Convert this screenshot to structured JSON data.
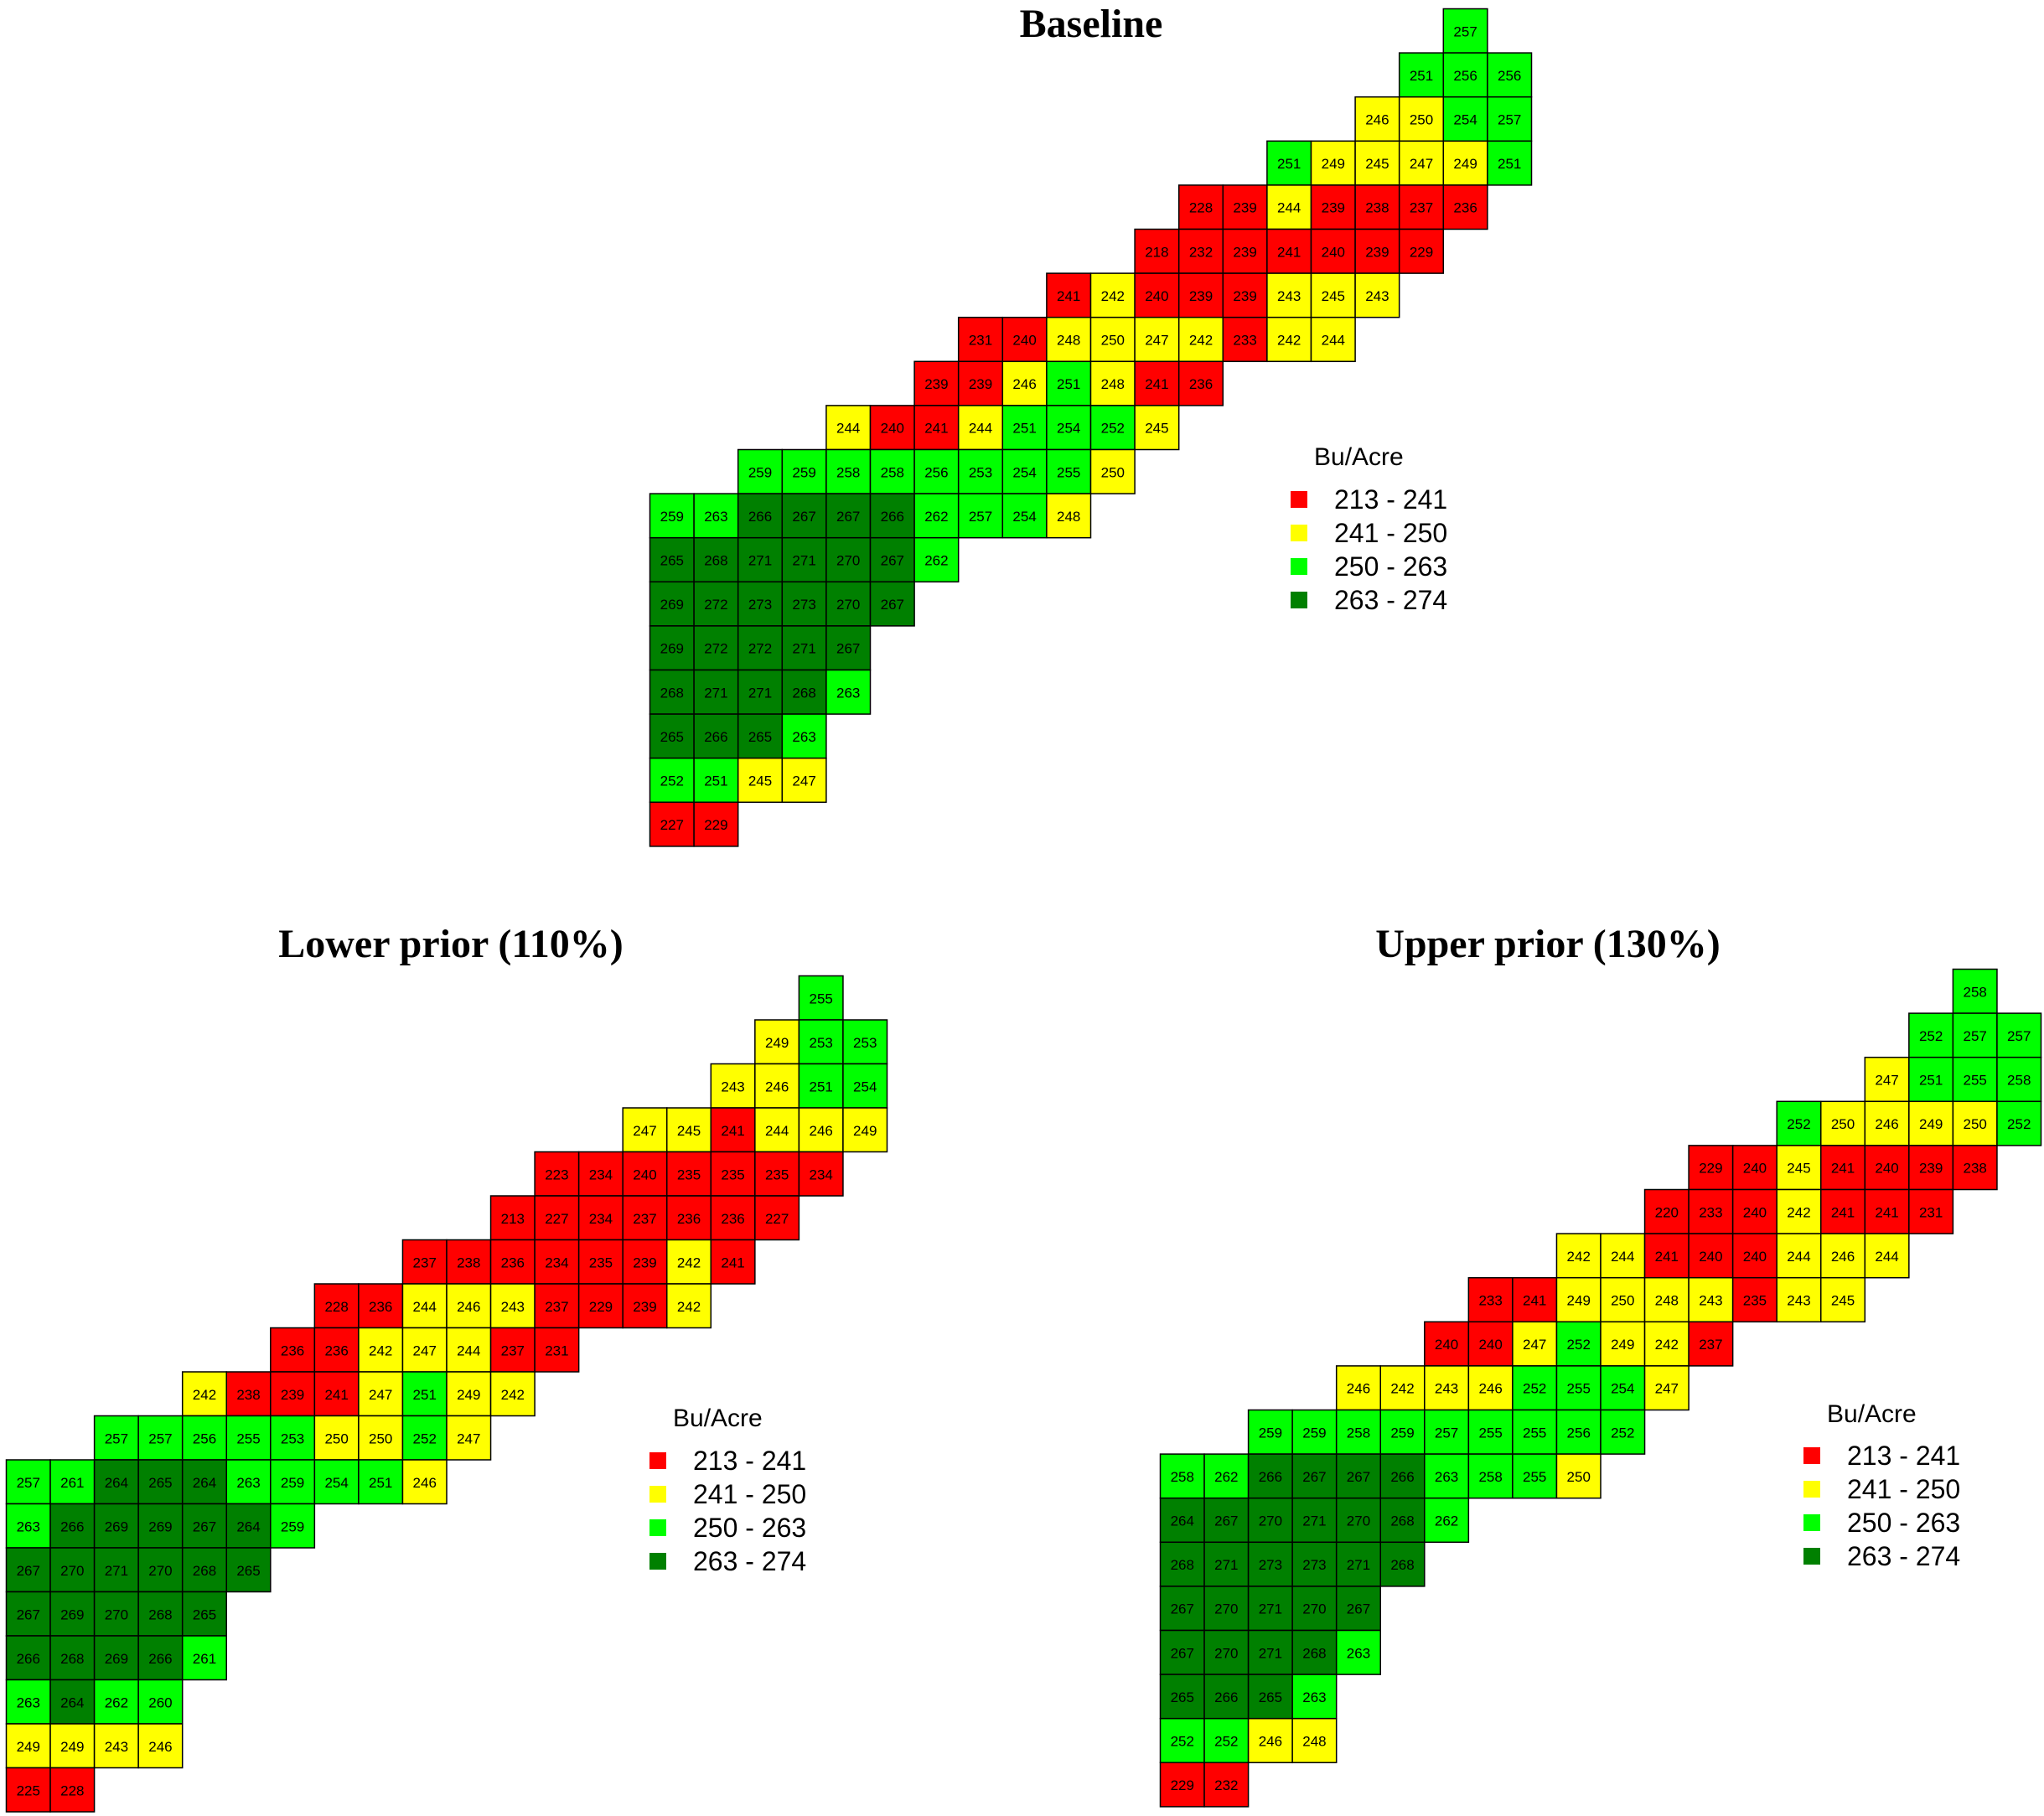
{
  "chart_data": {
    "type": "heatmap",
    "legend": {
      "title": "Bu/Acre",
      "classes": [
        {
          "label": "213 - 241",
          "color": "#ff0000"
        },
        {
          "label": "241 - 250",
          "color": "#ffff00"
        },
        {
          "label": "250 - 263",
          "color": "#00ff00"
        },
        {
          "label": "263 - 274",
          "color": "#008000"
        }
      ]
    },
    "panels": [
      {
        "title": "Baseline",
        "rows": [
          [
            257
          ],
          [
            251,
            256,
            256
          ],
          [
            246,
            250,
            254,
            257
          ],
          [
            251,
            249,
            245,
            247,
            249,
            251
          ],
          [
            228,
            239,
            244,
            239,
            238,
            237,
            236
          ],
          [
            218,
            232,
            239,
            241,
            240,
            239,
            229
          ],
          [
            241,
            242,
            240,
            239,
            239,
            243,
            245,
            243
          ],
          [
            231,
            240,
            248,
            250,
            247,
            242,
            233,
            242,
            244
          ],
          [
            239,
            239,
            246,
            251,
            248,
            241,
            236
          ],
          [
            244,
            240,
            241,
            244,
            251,
            254,
            252,
            245
          ],
          [
            259,
            259,
            258,
            258,
            256,
            253,
            254,
            255,
            250
          ],
          [
            259,
            263,
            266,
            267,
            267,
            266,
            262,
            257,
            254,
            248
          ],
          [
            265,
            268,
            271,
            271,
            270,
            267,
            262
          ],
          [
            269,
            272,
            273,
            273,
            270,
            267
          ],
          [
            269,
            272,
            272,
            271,
            267
          ],
          [
            268,
            271,
            271,
            268,
            263
          ],
          [
            265,
            266,
            265,
            263
          ],
          [
            252,
            251,
            245,
            247
          ],
          [
            227,
            229
          ]
        ]
      },
      {
        "title": "Lower prior (110%)",
        "rows": [
          [
            255
          ],
          [
            249,
            253,
            253
          ],
          [
            243,
            246,
            251,
            254
          ],
          [
            247,
            245,
            241,
            244,
            246,
            249
          ],
          [
            223,
            234,
            240,
            235,
            235,
            235,
            234
          ],
          [
            213,
            227,
            234,
            237,
            236,
            236,
            227
          ],
          [
            237,
            238,
            236,
            234,
            235,
            239,
            242,
            241
          ],
          [
            228,
            236,
            244,
            246,
            243,
            237,
            229,
            239,
            242
          ],
          [
            236,
            236,
            242,
            247,
            244,
            237,
            231
          ],
          [
            242,
            238,
            239,
            241,
            247,
            251,
            249,
            242
          ],
          [
            257,
            257,
            256,
            255,
            253,
            250,
            250,
            252,
            247
          ],
          [
            257,
            261,
            264,
            265,
            264,
            263,
            259,
            254,
            251,
            246
          ],
          [
            263,
            266,
            269,
            269,
            267,
            264,
            259
          ],
          [
            267,
            270,
            271,
            270,
            268,
            265
          ],
          [
            267,
            269,
            270,
            268,
            265
          ],
          [
            266,
            268,
            269,
            266,
            261
          ],
          [
            263,
            264,
            262,
            260
          ],
          [
            249,
            249,
            243,
            246
          ],
          [
            225,
            228
          ]
        ]
      },
      {
        "title": "Upper prior (130%)",
        "rows": [
          [
            258
          ],
          [
            252,
            257,
            257
          ],
          [
            247,
            251,
            255,
            258
          ],
          [
            252,
            250,
            246,
            249,
            250,
            252
          ],
          [
            229,
            240,
            245,
            241,
            240,
            239,
            238
          ],
          [
            220,
            233,
            240,
            242,
            241,
            241,
            231
          ],
          [
            242,
            244,
            241,
            240,
            240,
            244,
            246,
            244
          ],
          [
            233,
            241,
            249,
            250,
            248,
            243,
            235,
            243,
            245
          ],
          [
            240,
            240,
            247,
            252,
            249,
            242,
            237
          ],
          [
            246,
            242,
            243,
            246,
            252,
            255,
            254,
            247
          ],
          [
            259,
            259,
            258,
            259,
            257,
            255,
            255,
            256,
            252
          ],
          [
            258,
            262,
            266,
            267,
            267,
            266,
            263,
            258,
            255,
            250
          ],
          [
            264,
            267,
            270,
            271,
            270,
            268,
            262
          ],
          [
            268,
            271,
            273,
            273,
            271,
            268
          ],
          [
            267,
            270,
            271,
            270,
            267
          ],
          [
            267,
            270,
            271,
            268,
            263
          ],
          [
            265,
            266,
            265,
            263
          ],
          [
            252,
            252,
            246,
            248
          ],
          [
            229,
            232
          ]
        ]
      }
    ]
  }
}
